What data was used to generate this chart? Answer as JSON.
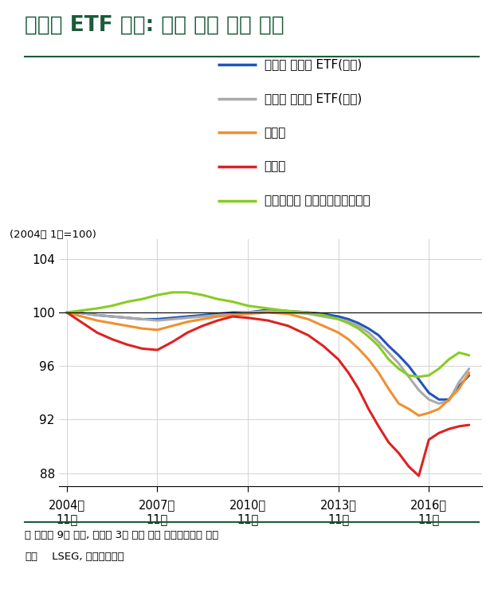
{
  "title": "밸류업 ETF 상장: 시장 대비 성과 방어",
  "ylabel_note": "(2004년 1월=100)",
  "footnote1": "주 패시브 9개 상품, 액티브 3개 상품 각각 동일가중으로 합산",
  "footnote2_bold": "자료",
  "footnote2_rest": " LSEG, 신한투자증권",
  "xtick_labels": [
    "2004년\n11월",
    "2007년\n11월",
    "2010년\n11월",
    "2013년\n11월",
    "2016년\n11월"
  ],
  "xtick_positions": [
    0,
    36,
    72,
    108,
    144
  ],
  "ytick_values": [
    88,
    92,
    96,
    100,
    104
  ],
  "ylim": [
    87.0,
    105.5
  ],
  "xlim": [
    -3,
    165
  ],
  "hline_y": 100,
  "title_color": "#1a5c3a",
  "separator_color": "#1a5c3a",
  "legend_entries": [
    {
      "label": "밸류업 패시브 ETF(평균)",
      "color": "#2255bb"
    },
    {
      "label": "밸류업 액티브 ETF(평균)",
      "color": "#aaaaaa"
    },
    {
      "label": "코스피",
      "color": "#f09030"
    },
    {
      "label": "코스닥",
      "color": "#dd2222"
    },
    {
      "label": "타임폴리오 코리아밸류업액티브",
      "color": "#88cc22"
    }
  ],
  "series": {
    "passive": {
      "color": "#2255bb",
      "linewidth": 2.2,
      "x": [
        0,
        4,
        8,
        12,
        18,
        24,
        30,
        36,
        42,
        48,
        54,
        60,
        66,
        72,
        80,
        88,
        96,
        102,
        108,
        112,
        116,
        120,
        124,
        128,
        132,
        136,
        140,
        144,
        148,
        152,
        156,
        160
      ],
      "y": [
        100.0,
        100.0,
        99.9,
        99.8,
        99.7,
        99.6,
        99.5,
        99.5,
        99.6,
        99.7,
        99.8,
        99.9,
        100.0,
        100.0,
        100.2,
        100.1,
        100.0,
        99.9,
        99.7,
        99.5,
        99.2,
        98.8,
        98.3,
        97.5,
        96.8,
        96.0,
        95.0,
        94.0,
        93.5,
        93.5,
        94.5,
        95.3
      ]
    },
    "active": {
      "color": "#aaaaaa",
      "linewidth": 2.2,
      "x": [
        0,
        4,
        8,
        12,
        18,
        24,
        30,
        36,
        42,
        48,
        54,
        60,
        66,
        72,
        80,
        88,
        96,
        102,
        108,
        112,
        116,
        120,
        124,
        128,
        132,
        136,
        140,
        144,
        148,
        152,
        156,
        160
      ],
      "y": [
        100.0,
        100.0,
        99.9,
        99.8,
        99.7,
        99.6,
        99.5,
        99.4,
        99.5,
        99.6,
        99.7,
        99.8,
        99.9,
        100.0,
        100.1,
        100.0,
        99.9,
        99.7,
        99.5,
        99.3,
        99.0,
        98.5,
        97.8,
        97.0,
        96.2,
        95.2,
        94.2,
        93.5,
        93.2,
        93.4,
        94.8,
        95.8
      ]
    },
    "kospi": {
      "color": "#f09030",
      "linewidth": 2.2,
      "x": [
        0,
        4,
        8,
        12,
        18,
        24,
        30,
        36,
        42,
        48,
        54,
        60,
        66,
        72,
        80,
        88,
        96,
        102,
        108,
        112,
        116,
        120,
        124,
        128,
        132,
        136,
        140,
        144,
        148,
        152,
        156,
        160
      ],
      "y": [
        100.0,
        99.8,
        99.6,
        99.4,
        99.2,
        99.0,
        98.8,
        98.7,
        99.0,
        99.3,
        99.5,
        99.7,
        99.8,
        99.9,
        100.0,
        99.9,
        99.5,
        99.0,
        98.5,
        98.0,
        97.3,
        96.5,
        95.5,
        94.3,
        93.2,
        92.8,
        92.3,
        92.5,
        92.8,
        93.5,
        94.3,
        95.5
      ]
    },
    "kosdaq": {
      "color": "#dd2222",
      "linewidth": 2.2,
      "x": [
        0,
        4,
        8,
        12,
        18,
        24,
        30,
        36,
        42,
        48,
        54,
        60,
        66,
        72,
        80,
        88,
        96,
        102,
        108,
        112,
        116,
        120,
        124,
        128,
        132,
        136,
        140,
        144,
        148,
        152,
        156,
        160
      ],
      "y": [
        100.0,
        99.5,
        99.0,
        98.5,
        98.0,
        97.6,
        97.3,
        97.2,
        97.8,
        98.5,
        99.0,
        99.4,
        99.7,
        99.6,
        99.4,
        99.0,
        98.3,
        97.5,
        96.5,
        95.5,
        94.3,
        92.8,
        91.5,
        90.3,
        89.5,
        88.5,
        87.8,
        90.5,
        91.0,
        91.3,
        91.5,
        91.6
      ]
    },
    "timefolio": {
      "color": "#88cc22",
      "linewidth": 2.2,
      "x": [
        0,
        4,
        8,
        12,
        18,
        24,
        30,
        36,
        42,
        48,
        54,
        60,
        66,
        72,
        80,
        88,
        96,
        102,
        108,
        112,
        116,
        120,
        124,
        128,
        132,
        136,
        140,
        144,
        148,
        152,
        156,
        160
      ],
      "y": [
        100.0,
        100.1,
        100.2,
        100.3,
        100.5,
        100.8,
        101.0,
        101.3,
        101.5,
        101.5,
        101.3,
        101.0,
        100.8,
        100.5,
        100.3,
        100.1,
        100.0,
        99.8,
        99.5,
        99.2,
        98.8,
        98.2,
        97.5,
        96.5,
        95.8,
        95.3,
        95.2,
        95.3,
        95.8,
        96.5,
        97.0,
        96.8
      ]
    }
  }
}
